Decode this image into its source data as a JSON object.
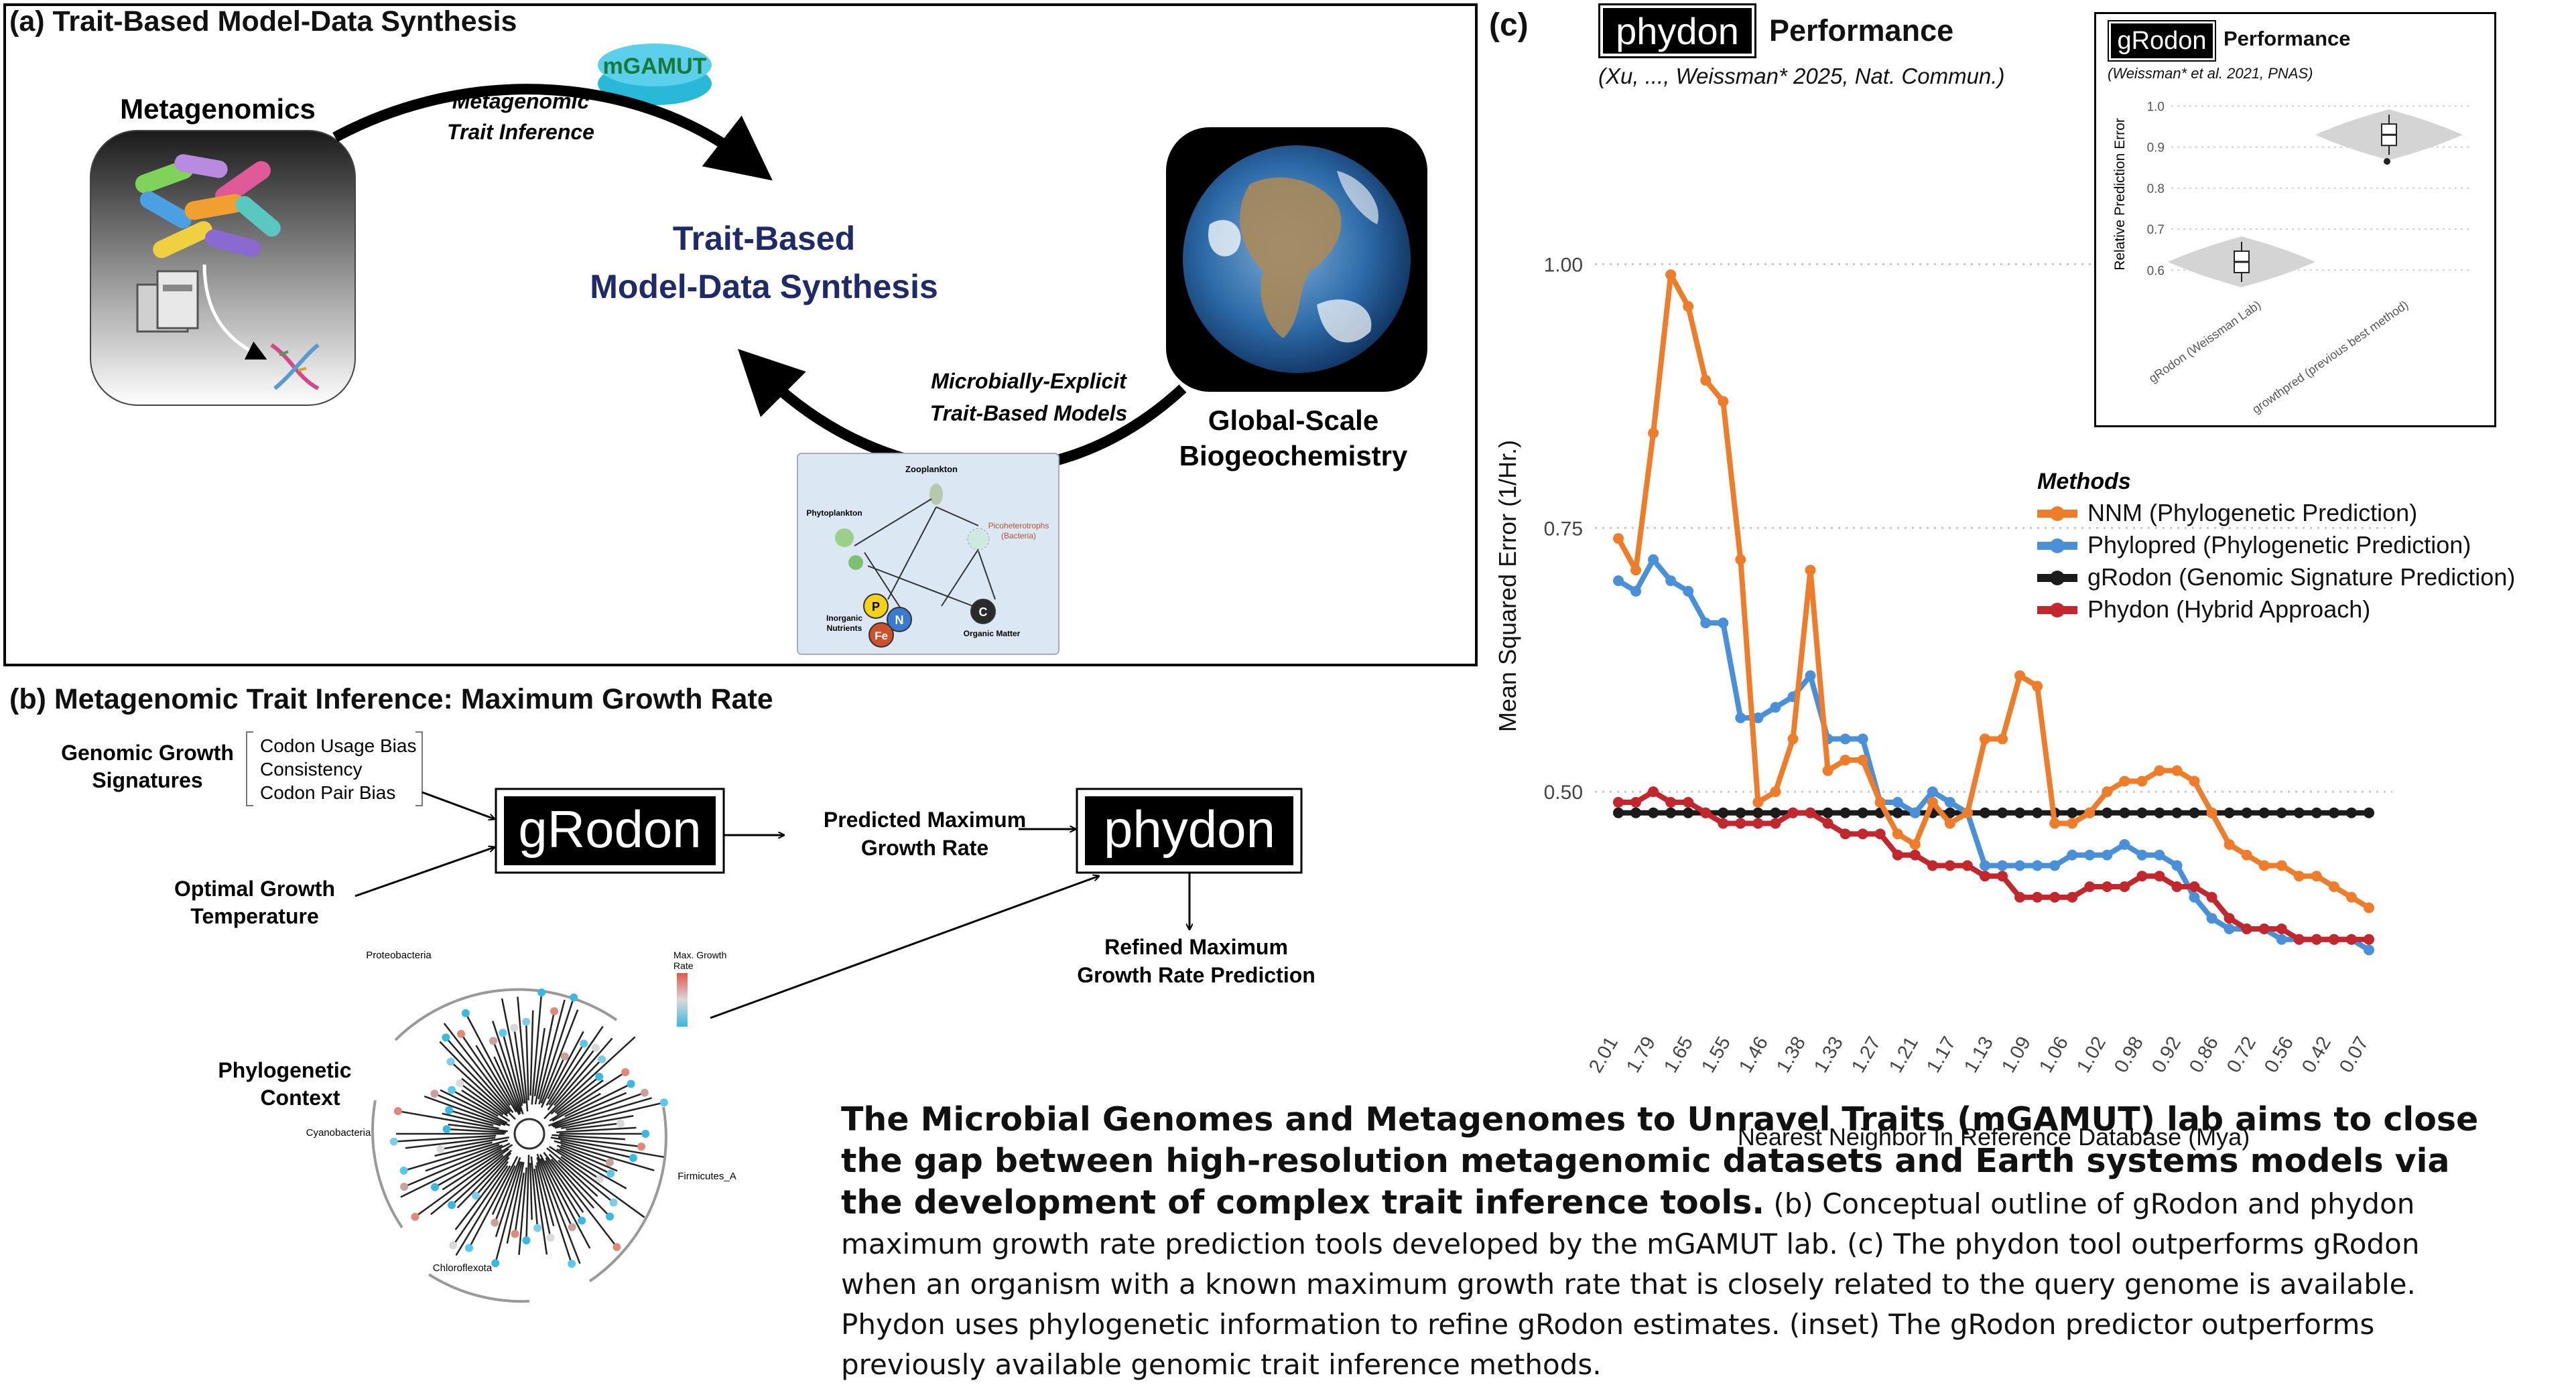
{
  "panel_a": {
    "title": "(a) Trait-Based Model-Data Synthesis",
    "metagenomics_label": "Metagenomics",
    "logo_text": "mGAMUT",
    "arrow_top_label_line1": "Metagenomic",
    "arrow_top_label_line2": "Trait Inference",
    "center_line1": "Trait-Based",
    "center_line2": "Model-Data Synthesis",
    "arrow_bottom_label_line1": "Microbially-Explicit",
    "arrow_bottom_label_line2": "Trait-Based Models",
    "global_label_line1": "Global-Scale",
    "global_label_line2": "Biogeochemistry",
    "foodweb": {
      "zooplankton": "Zooplankton",
      "phytoplankton": "Phytoplankton",
      "picoheterotrophs_line1": "Picoheterotrophs",
      "picoheterotrophs_line2": "(Bacteria)",
      "inorganic_line1": "Inorganic",
      "inorganic_line2": "Nutrients",
      "organic": "Organic Matter",
      "node_p": "P",
      "node_n": "N",
      "node_fe": "Fe",
      "node_c": "C"
    }
  },
  "panel_b": {
    "title": "(b) Metagenomic Trait Inference: Maximum Growth Rate",
    "genomic_line1": "Genomic Growth",
    "genomic_line2": "Signatures",
    "bias_items": [
      "Codon Usage Bias",
      "Consistency",
      "Codon Pair Bias"
    ],
    "optimal_line1": "Optimal Growth",
    "optimal_line2": "Temperature",
    "grodon_box": "gRodon",
    "predicted_line1": "Predicted Maximum",
    "predicted_line2": "Growth Rate",
    "phydon_box": "phydon",
    "refined_line1": "Refined Maximum",
    "refined_line2": "Growth Rate Prediction",
    "phylo_line1": "Phylogenetic",
    "phylo_line2": "Context",
    "clades": [
      "Proteobacteria",
      "Cyanobacteria",
      "Firmicutes_A",
      "Chloroflexota"
    ],
    "legend_line1": "Max. Growth",
    "legend_line2": "Rate"
  },
  "panel_c": {
    "label": "(c)",
    "title_box": "phydon",
    "title_rest": "Performance",
    "citation": "(Xu, ..., Weissman* 2025, Nat. Commun.)",
    "chart_data": {
      "type": "line",
      "ylabel": "Mean Squared Error (1/Hr.)",
      "xlabel": "Nearest Neighbor In Reference Database (Mya)",
      "ylim": [
        0.33,
        1.06
      ],
      "yticks": [
        "1.00",
        "0.75",
        "0.50"
      ],
      "xticks": [
        "2.01",
        "1.79",
        "1.65",
        "1.55",
        "1.46",
        "1.38",
        "1.33",
        "1.27",
        "1.21",
        "1.17",
        "1.13",
        "1.09",
        "1.06",
        "1.02",
        "0.98",
        "0.92",
        "0.86",
        "0.72",
        "0.56",
        "0.42",
        "0.07"
      ],
      "grid": "horizontal dotted",
      "legend_title": "Methods",
      "legend_position": "right",
      "series": [
        {
          "name": "NNM (Phylogenetic Prediction)",
          "color": "#ee7d2b",
          "values": [
            0.74,
            0.71,
            0.84,
            0.99,
            0.96,
            0.89,
            0.87,
            0.72,
            0.49,
            0.5,
            0.55,
            0.71,
            0.52,
            0.53,
            0.53,
            0.49,
            0.46,
            0.45,
            0.49,
            0.47,
            0.48,
            0.55,
            0.55,
            0.61,
            0.6,
            0.47,
            0.47,
            0.48,
            0.5,
            0.51,
            0.51,
            0.52,
            0.52,
            0.51,
            0.48,
            0.45,
            0.44,
            0.43,
            0.43,
            0.42,
            0.42,
            0.41,
            0.4,
            0.39
          ]
        },
        {
          "name": "Phylopred (Phylogenetic Prediction)",
          "color": "#4a90d9",
          "values": [
            0.7,
            0.69,
            0.72,
            0.7,
            0.69,
            0.66,
            0.66,
            0.57,
            0.57,
            0.58,
            0.59,
            0.61,
            0.55,
            0.55,
            0.55,
            0.49,
            0.49,
            0.48,
            0.5,
            0.49,
            0.48,
            0.43,
            0.43,
            0.43,
            0.43,
            0.43,
            0.44,
            0.44,
            0.44,
            0.45,
            0.44,
            0.44,
            0.43,
            0.4,
            0.38,
            0.37,
            0.37,
            0.37,
            0.36,
            0.36,
            0.36,
            0.36,
            0.36,
            0.35
          ]
        },
        {
          "name": "gRodon (Genomic Signature Prediction)",
          "color": "#1b1b1b",
          "values": [
            0.48,
            0.48,
            0.48,
            0.48,
            0.48,
            0.48,
            0.48,
            0.48,
            0.48,
            0.48,
            0.48,
            0.48,
            0.48,
            0.48,
            0.48,
            0.48,
            0.48,
            0.48,
            0.48,
            0.48,
            0.48,
            0.48,
            0.48,
            0.48,
            0.48,
            0.48,
            0.48,
            0.48,
            0.48,
            0.48,
            0.48,
            0.48,
            0.48,
            0.48,
            0.48,
            0.48,
            0.48,
            0.48,
            0.48,
            0.48,
            0.48,
            0.48,
            0.48,
            0.48
          ]
        },
        {
          "name": "Phydon (Hybrid Approach)",
          "color": "#c1272d",
          "values": [
            0.49,
            0.49,
            0.5,
            0.49,
            0.49,
            0.48,
            0.47,
            0.47,
            0.47,
            0.47,
            0.48,
            0.48,
            0.47,
            0.46,
            0.46,
            0.46,
            0.44,
            0.44,
            0.43,
            0.43,
            0.43,
            0.42,
            0.42,
            0.4,
            0.4,
            0.4,
            0.4,
            0.41,
            0.41,
            0.41,
            0.42,
            0.42,
            0.41,
            0.41,
            0.4,
            0.38,
            0.37,
            0.37,
            0.37,
            0.36,
            0.36,
            0.36,
            0.36,
            0.36
          ]
        }
      ]
    },
    "inset": {
      "title_box": "gRodon",
      "title_rest": "Performance",
      "citation": "(Weissman* et al. 2021, PNAS)",
      "ylabel": "Relative Prediction Error",
      "yticks": [
        "1.0",
        "0.9",
        "0.8",
        "0.7",
        "0.6"
      ],
      "categories": [
        "gRodon (Weissman Lab)",
        "growthpred (previous best method)"
      ],
      "medians": [
        0.62,
        0.93
      ]
    }
  },
  "caption": {
    "bold": "The Microbial Genomes and Metagenomes to Unravel Traits (mGAMUT) lab aims to close the gap between high-resolution metagenomic datasets and Earth systems models via the development of complex trait inference tools.",
    "rest": " (b) Conceptual outline of gRodon and phydon maximum growth rate prediction tools developed by the mGAMUT lab. (c) The phydon tool outperforms gRodon when an organism with a known maximum growth rate that is closely related to the query genome is available. Phydon uses phylogenetic information to refine gRodon estimates. (inset) The gRodon predictor outperforms previously available genomic trait inference methods."
  },
  "colors": {
    "panel_border": "#000000",
    "center_text": "#1f2a6b",
    "nnm": "#ee7d2b",
    "phylopred": "#4a90d9",
    "grodon": "#1b1b1b",
    "phydon": "#c1272d"
  }
}
